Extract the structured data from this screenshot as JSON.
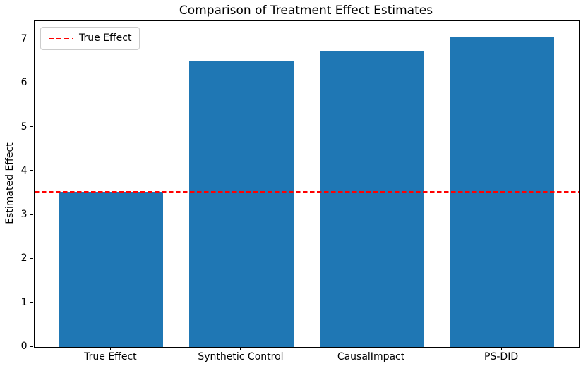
{
  "figure": {
    "title": "Comparison of Treatment Effect Estimates"
  },
  "chart_data": {
    "type": "bar",
    "title": "Comparison of Treatment Effect Estimates",
    "xlabel": "",
    "ylabel": "Estimated Effect",
    "categories": [
      "True Effect",
      "Synthetic Control",
      "CausalImpact",
      "PS-DID"
    ],
    "values": [
      3.54,
      6.5,
      6.74,
      7.06
    ],
    "bar_color": "#1f77b4",
    "bar_width_fraction": 0.8,
    "ylim": [
      0,
      7.42
    ],
    "yticks": [
      0,
      1,
      2,
      3,
      4,
      5,
      6,
      7
    ],
    "grid": false,
    "background": "#ffffff",
    "legend": {
      "position": "upper left",
      "entries": [
        {
          "label": "True Effect",
          "color": "#ff0000",
          "line_style": "dashed"
        }
      ]
    },
    "reference_line": {
      "label": "True Effect",
      "value": 3.54,
      "color": "#ff0000",
      "style": "dashed"
    }
  }
}
